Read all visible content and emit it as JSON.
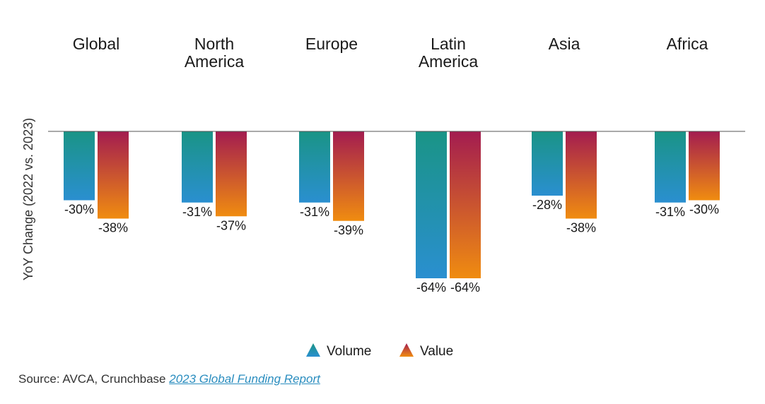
{
  "chart_data": {
    "type": "bar",
    "categories": [
      [
        "Global"
      ],
      [
        "North",
        "America"
      ],
      [
        "Europe"
      ],
      [
        "Latin",
        "America"
      ],
      [
        "Asia"
      ],
      [
        "Africa"
      ]
    ],
    "category_names": [
      "Global",
      "North America",
      "Europe",
      "Latin America",
      "Asia",
      "Africa"
    ],
    "series": [
      {
        "name": "Volume",
        "values": [
          -30,
          -31,
          -31,
          -64,
          -28,
          -31
        ],
        "labels": [
          "-30%",
          "-31%",
          "-31%",
          "-64%",
          "-28%",
          "-31%"
        ],
        "color_top": "#1a9486",
        "color_bottom": "#2a8fd0"
      },
      {
        "name": "Value",
        "values": [
          -38,
          -37,
          -39,
          -64,
          -38,
          -30
        ],
        "labels": [
          "-38%",
          "-37%",
          "-39%",
          "-64%",
          "-38%",
          "-30%"
        ],
        "color_top": "#a31c50",
        "color_bottom": "#f08c10"
      }
    ],
    "ylabel": "YoY Change (2022 vs. 2023)",
    "ylim": [
      -64,
      0
    ],
    "legend_position": "bottom-center"
  },
  "legend": {
    "volume_label": "Volume",
    "value_label": "Value"
  },
  "source": {
    "prefix": "Source: AVCA, Crunchbase ",
    "link_text": "2023 Global Funding Report"
  }
}
